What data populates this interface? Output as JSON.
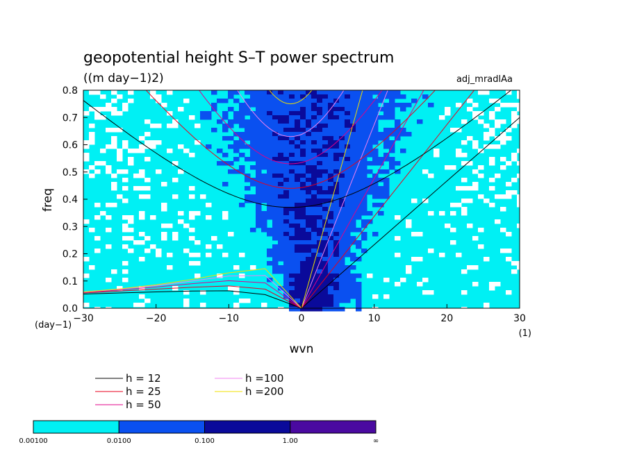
{
  "chart_data": {
    "type": "heatmap",
    "title": "geopotential height S–T power spectrum",
    "units": "((m day−1)2)",
    "tag": "adj_mradlAa",
    "xlabel": "wvn",
    "ylabel": "freq",
    "x_unit": "(1)",
    "y_unit": "(day−1)",
    "xlim": [
      -30,
      30
    ],
    "ylim": [
      0,
      0.8
    ],
    "x_ticks": [
      {
        "value": -30,
        "label": "−30"
      },
      {
        "value": -20,
        "label": "−20"
      },
      {
        "value": -10,
        "label": "−10"
      },
      {
        "value": 0,
        "label": "0"
      },
      {
        "value": 10,
        "label": "10"
      },
      {
        "value": 20,
        "label": "20"
      },
      {
        "value": 30,
        "label": "30"
      }
    ],
    "y_ticks": [
      {
        "value": 0.0,
        "label": "0.0"
      },
      {
        "value": 0.1,
        "label": "0.1"
      },
      {
        "value": 0.2,
        "label": "0.2"
      },
      {
        "value": 0.3,
        "label": "0.3"
      },
      {
        "value": 0.4,
        "label": "0.4"
      },
      {
        "value": 0.5,
        "label": "0.5"
      },
      {
        "value": 0.6,
        "label": "0.6"
      },
      {
        "value": 0.7,
        "label": "0.7"
      },
      {
        "value": 0.8,
        "label": "0.8"
      }
    ],
    "grid": false,
    "colorbar": {
      "levels": [
        "0.00100",
        "0.0100",
        "0.100",
        "1.00",
        "∞"
      ],
      "colors": [
        "#00f0f4",
        "#0a50f0",
        "#0a0a9a",
        "#4a0aa0"
      ]
    },
    "background_field_color": "#ffffff",
    "series": [
      {
        "name": "h = 12",
        "label": "h = 12",
        "color": "#000000",
        "h": 12
      },
      {
        "name": "h = 25",
        "label": "h = 25",
        "color": "#e8001c",
        "h": 25
      },
      {
        "name": "h = 50",
        "label": "h = 50",
        "color": "#e0008a",
        "h": 50
      },
      {
        "name": "h =100",
        "label": "h =100",
        "color": "#f080f0",
        "h": 100
      },
      {
        "name": "h =200",
        "label": "h =200",
        "color": "#f0e000",
        "h": 200
      }
    ],
    "curves": {
      "kelvin": {
        "x": [
          0,
          5,
          10,
          15,
          20,
          25,
          30
        ],
        "y_by_h": {
          "12": [
            0,
            0.117,
            0.233,
            0.35,
            0.467,
            0.583,
            0.7
          ],
          "25": [
            0,
            0.168,
            0.337,
            0.505,
            0.674,
            0.842,
            null
          ],
          "50": [
            0,
            0.238,
            0.476,
            0.714,
            null,
            null,
            null
          ],
          "100": [
            0,
            0.337,
            0.674,
            null,
            null,
            null,
            null
          ],
          "200": [
            0,
            0.476,
            null,
            null,
            null,
            null,
            null
          ]
        }
      },
      "ig_n1_min_freq": {
        "12": 0.37,
        "25": 0.44,
        "50": 0.53,
        "100": 0.63,
        "200": 0.75
      },
      "ig_n1_left_edge": {
        "12": 0.77
      },
      "er_n1": {
        "x": [
          -30,
          -25,
          -20,
          -15,
          -10,
          -5,
          0
        ],
        "y_by_h": {
          "12": [
            0.052,
            0.056,
            0.06,
            0.063,
            0.064,
            0.05,
            0
          ],
          "25": [
            0.056,
            0.063,
            0.07,
            0.077,
            0.082,
            0.07,
            0
          ],
          "50": [
            0.058,
            0.067,
            0.078,
            0.09,
            0.101,
            0.093,
            0
          ],
          "100": [
            0.059,
            0.07,
            0.083,
            0.1,
            0.118,
            0.12,
            0
          ],
          "200": [
            0.06,
            0.071,
            0.086,
            0.106,
            0.13,
            0.145,
            0
          ]
        }
      }
    }
  }
}
